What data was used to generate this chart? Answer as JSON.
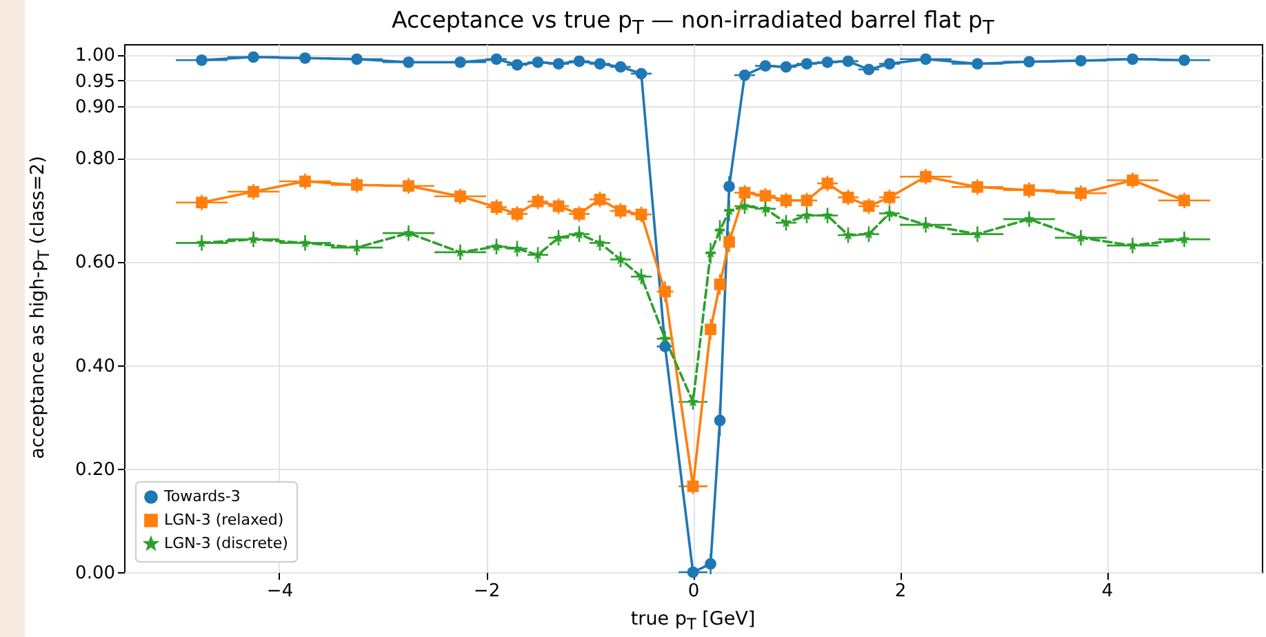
{
  "chart_data": {
    "type": "line",
    "title": "Acceptance vs true p$_{T}$ — non-irradiated barrel flat p$_{T}$",
    "xlabel": "true p$_{T}$ [GeV]",
    "ylabel": "acceptance as high-p$_{T}$ (class=2)",
    "x": [
      -4.75,
      -4.25,
      -3.75,
      -3.25,
      -2.75,
      -2.25,
      -1.9,
      -1.7,
      -1.5,
      -1.3,
      -1.1,
      -0.9,
      -0.7,
      -0.5,
      -0.27,
      0,
      0.17,
      0.26,
      0.35,
      0.5,
      0.7,
      0.9,
      1.1,
      1.3,
      1.5,
      1.7,
      1.9,
      2.25,
      2.75,
      3.25,
      3.75,
      4.25,
      4.75
    ],
    "series": [
      {
        "name": "Towards-3",
        "color": "#1f77b4",
        "marker": "circle",
        "line_style": "solid",
        "values": [
          0.989,
          0.995,
          0.993,
          0.991,
          0.985,
          0.985,
          0.991,
          0.98,
          0.985,
          0.982,
          0.987,
          0.982,
          0.976,
          0.963,
          0.436,
          0.0,
          0.016,
          0.293,
          0.745,
          0.96,
          0.978,
          0.976,
          0.982,
          0.985,
          0.987,
          0.971,
          0.982,
          0.991,
          0.982,
          0.986,
          0.988,
          0.991,
          0.989
        ],
        "errors": [
          0.005,
          0.005,
          0.005,
          0.005,
          0.005,
          0.005,
          0.005,
          0.005,
          0.005,
          0.005,
          0.005,
          0.005,
          0.005,
          0.005,
          0.01,
          0.005,
          0.02,
          0.03,
          0.02,
          0.005,
          0.005,
          0.005,
          0.005,
          0.005,
          0.005,
          0.005,
          0.005,
          0.005,
          0.005,
          0.005,
          0.005,
          0.005,
          0.005
        ],
        "xerrors": [
          0.25,
          0.25,
          0.25,
          0.25,
          0.25,
          0.25,
          0.1,
          0.1,
          0.1,
          0.1,
          0.1,
          0.1,
          0.1,
          0.1,
          0.08,
          0.14,
          0.05,
          0.05,
          0.05,
          0.1,
          0.1,
          0.1,
          0.1,
          0.1,
          0.1,
          0.1,
          0.1,
          0.25,
          0.25,
          0.25,
          0.25,
          0.25,
          0.25
        ]
      },
      {
        "name": "LGN-3 (relaxed)",
        "color": "#ff7f0e",
        "marker": "square",
        "line_style": "solid",
        "values": [
          0.714,
          0.735,
          0.755,
          0.748,
          0.746,
          0.726,
          0.705,
          0.692,
          0.716,
          0.707,
          0.692,
          0.72,
          0.698,
          0.691,
          0.542,
          0.166,
          0.469,
          0.556,
          0.638,
          0.733,
          0.727,
          0.718,
          0.718,
          0.751,
          0.724,
          0.707,
          0.724,
          0.764,
          0.744,
          0.738,
          0.732,
          0.757,
          0.718
        ],
        "errors": [
          0.015,
          0.015,
          0.015,
          0.015,
          0.015,
          0.015,
          0.015,
          0.015,
          0.015,
          0.015,
          0.015,
          0.015,
          0.015,
          0.015,
          0.02,
          0.015,
          0.02,
          0.02,
          0.02,
          0.015,
          0.015,
          0.015,
          0.015,
          0.015,
          0.015,
          0.015,
          0.015,
          0.015,
          0.015,
          0.015,
          0.015,
          0.015,
          0.015
        ],
        "xerrors": [
          0.25,
          0.25,
          0.25,
          0.25,
          0.25,
          0.25,
          0.1,
          0.1,
          0.1,
          0.1,
          0.1,
          0.1,
          0.1,
          0.1,
          0.08,
          0.14,
          0.05,
          0.05,
          0.05,
          0.1,
          0.1,
          0.1,
          0.1,
          0.1,
          0.1,
          0.1,
          0.1,
          0.25,
          0.25,
          0.25,
          0.25,
          0.25,
          0.25
        ]
      },
      {
        "name": "LGN-3 (discrete)",
        "color": "#2ca02c",
        "marker": "star",
        "line_style": "dashed",
        "values": [
          0.636,
          0.643,
          0.636,
          0.627,
          0.655,
          0.618,
          0.629,
          0.625,
          0.613,
          0.646,
          0.653,
          0.636,
          0.604,
          0.571,
          0.451,
          0.329,
          0.616,
          0.66,
          0.698,
          0.707,
          0.702,
          0.675,
          0.689,
          0.689,
          0.651,
          0.653,
          0.693,
          0.671,
          0.653,
          0.682,
          0.646,
          0.631,
          0.643
        ],
        "errors": [
          0.015,
          0.015,
          0.015,
          0.015,
          0.015,
          0.015,
          0.015,
          0.015,
          0.015,
          0.015,
          0.015,
          0.015,
          0.015,
          0.015,
          0.015,
          0.015,
          0.02,
          0.02,
          0.02,
          0.015,
          0.015,
          0.015,
          0.015,
          0.015,
          0.015,
          0.015,
          0.015,
          0.015,
          0.015,
          0.015,
          0.015,
          0.015,
          0.015
        ],
        "xerrors": [
          0.25,
          0.25,
          0.25,
          0.25,
          0.25,
          0.25,
          0.1,
          0.1,
          0.1,
          0.1,
          0.1,
          0.1,
          0.1,
          0.1,
          0.08,
          0.14,
          0.05,
          0.05,
          0.05,
          0.1,
          0.1,
          0.1,
          0.1,
          0.1,
          0.1,
          0.1,
          0.1,
          0.25,
          0.25,
          0.25,
          0.25,
          0.25,
          0.25
        ]
      }
    ],
    "xlim": [
      -5.5,
      5.5
    ],
    "xticks": [
      {
        "value": -4,
        "label": "−4"
      },
      {
        "value": -2,
        "label": "−2"
      },
      0,
      2,
      4
    ],
    "ylim": [
      0,
      1.02
    ],
    "yticks": [
      {
        "value": 0,
        "label": "0.00"
      },
      {
        "value": 0.2,
        "label": "0.20"
      },
      {
        "value": 0.4,
        "label": "0.40"
      },
      {
        "value": 0.6,
        "label": "0.60"
      },
      {
        "value": 0.8,
        "label": "0.80"
      },
      {
        "value": 0.9,
        "label": "0.90"
      },
      {
        "value": 0.95,
        "label": "0.95"
      },
      {
        "value": 1,
        "label": "1.00"
      }
    ],
    "grid": true,
    "legend": "bottom left"
  }
}
